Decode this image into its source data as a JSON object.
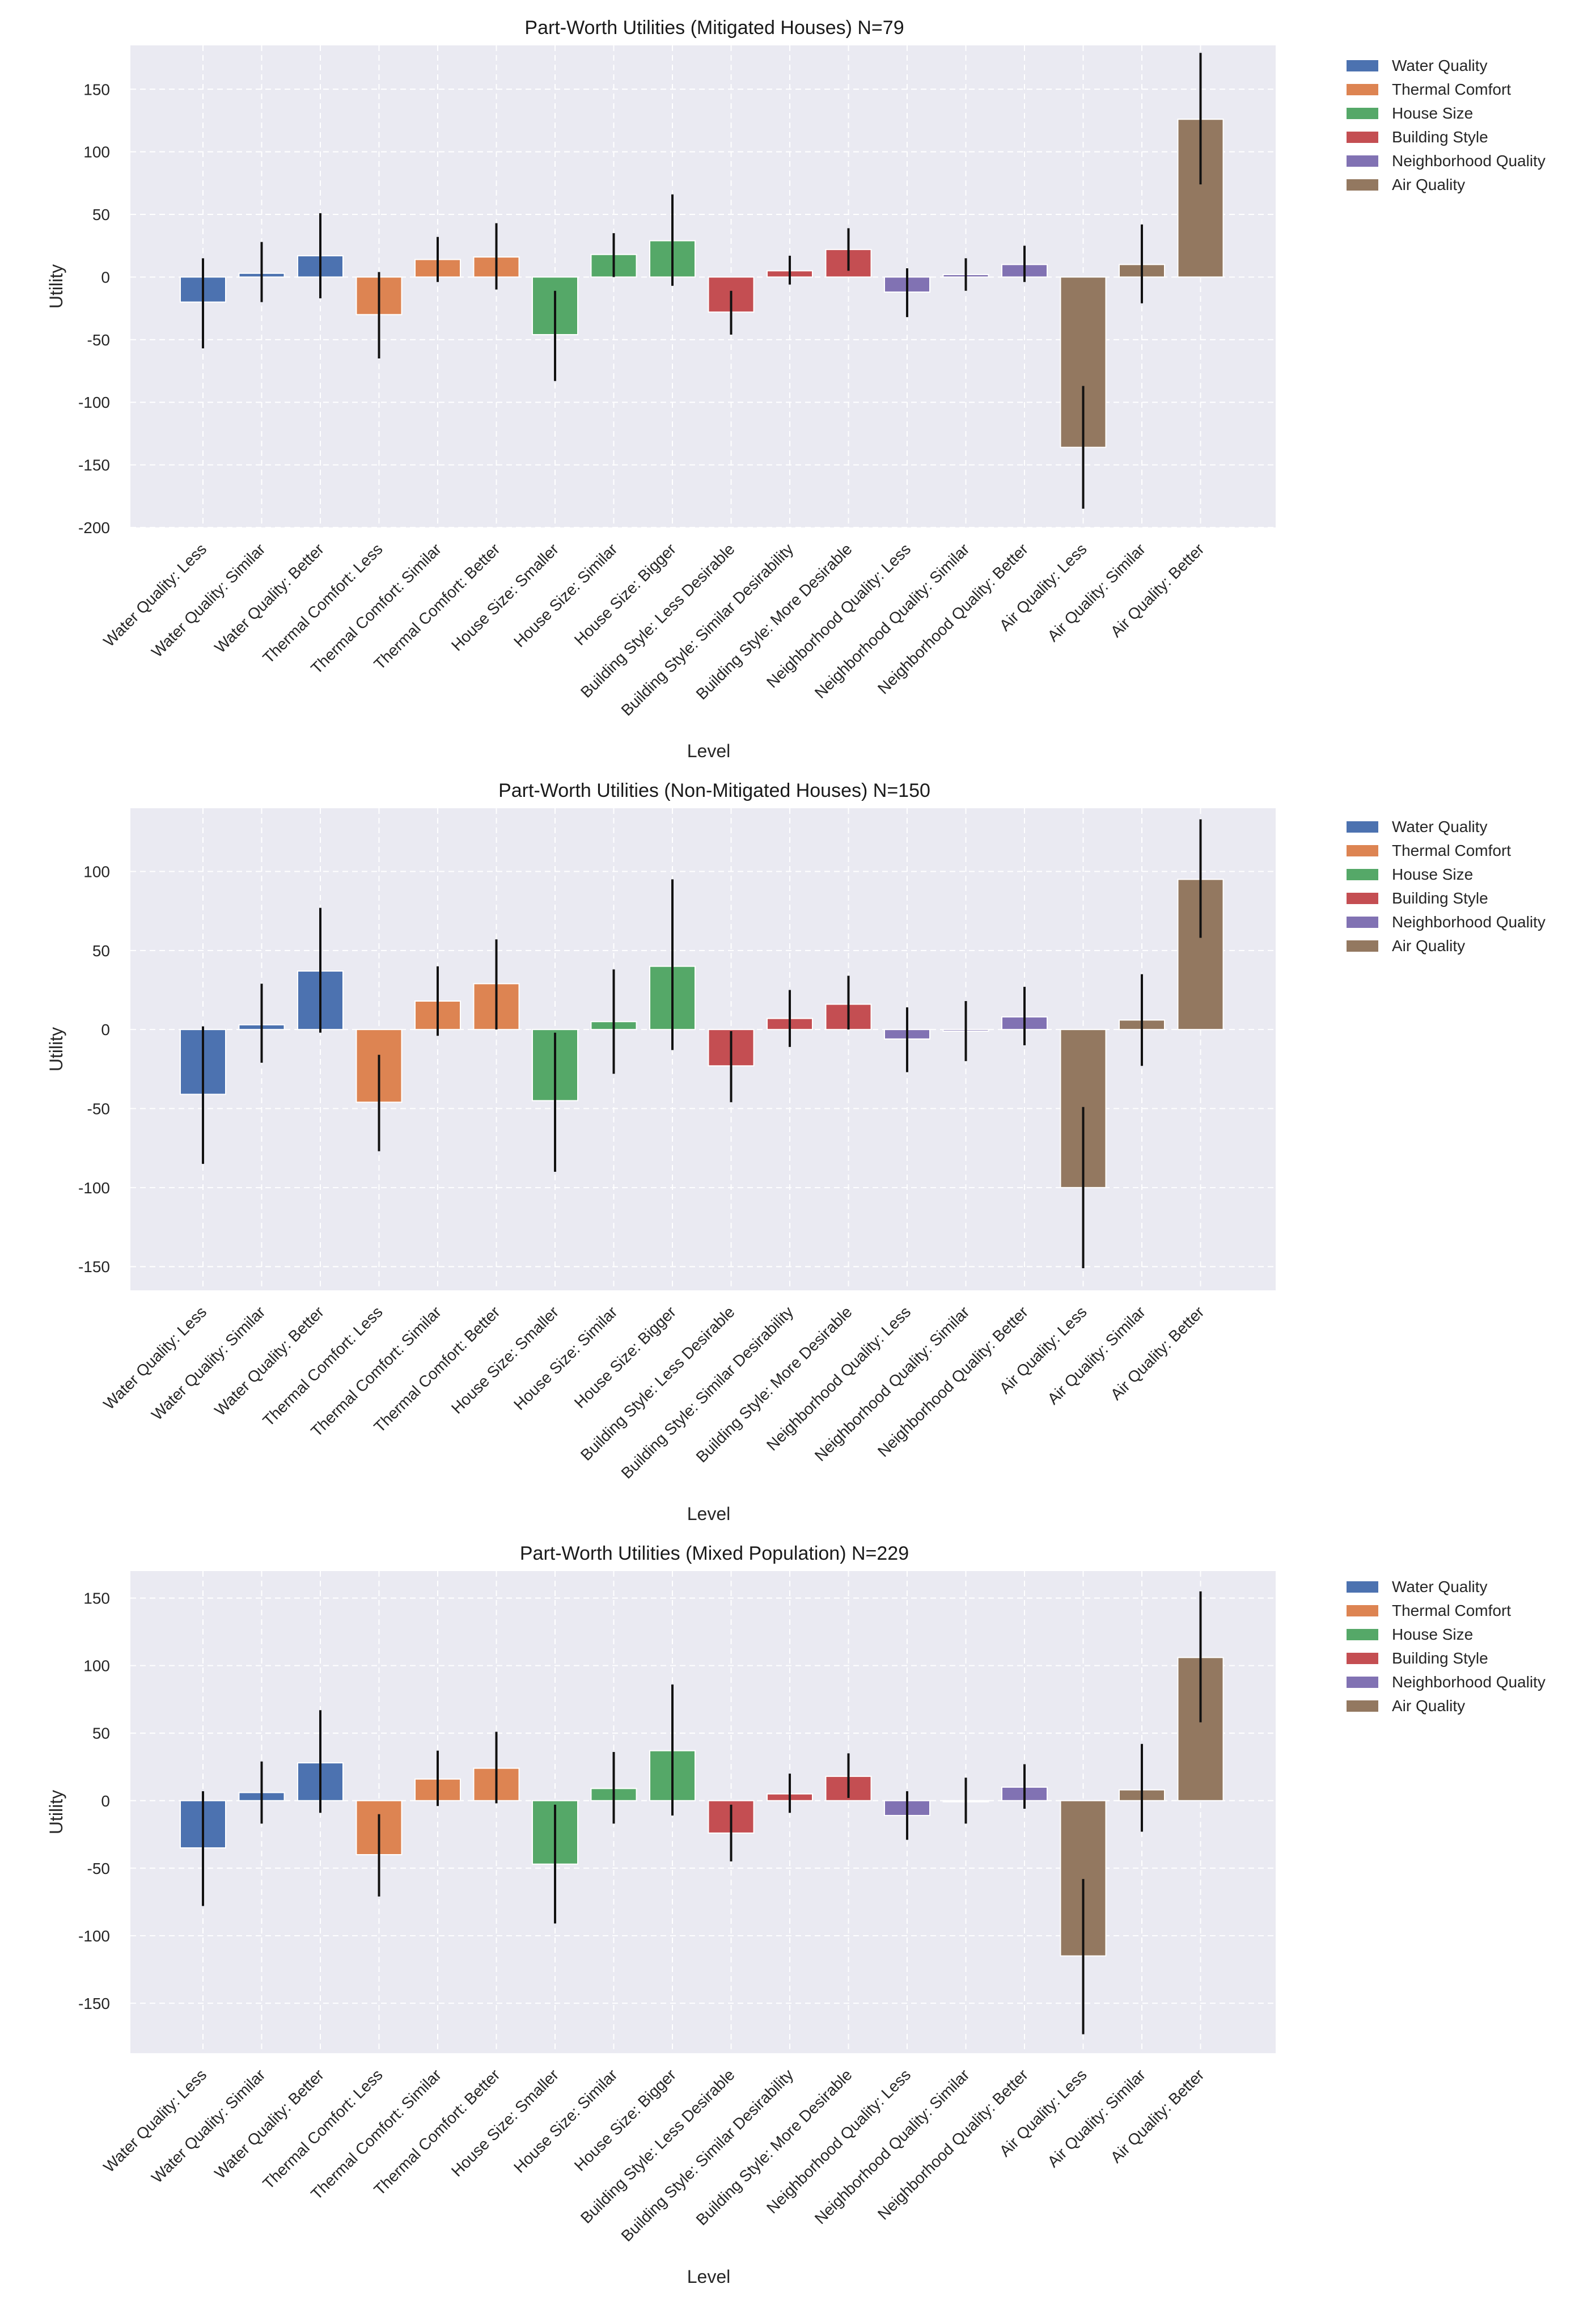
{
  "colors": {
    "Water Quality": "#4c72b0",
    "Thermal Comfort": "#dd8452",
    "House Size": "#55a868",
    "Building Style": "#c44e52",
    "Neighborhood Quality": "#8172b3",
    "Air Quality": "#937860"
  },
  "chart_data": [
    {
      "type": "bar",
      "title": "Part-Worth Utilities (Mitigated Houses) N=79",
      "xlabel": "Level",
      "ylabel": "Utility",
      "ylim": [
        -200,
        185
      ],
      "yticks": [
        -200,
        -150,
        -100,
        -50,
        0,
        50,
        100,
        150
      ],
      "grid": true,
      "legend": {
        "placement": "outside-right",
        "entries": [
          "Water Quality",
          "Thermal Comfort",
          "House Size",
          "Building Style",
          "Neighborhood Quality",
          "Air Quality"
        ]
      },
      "categories": [
        "Water Quality: Less",
        "Water Quality: Similar",
        "Water Quality: Better",
        "Thermal Comfort: Less",
        "Thermal Comfort: Similar",
        "Thermal Comfort: Better",
        "House Size: Smaller",
        "House Size: Similar",
        "House Size: Bigger",
        "Building Style: Less Desirable",
        "Building Style: Similar Desirability",
        "Building Style: More Desirable",
        "Neighborhood Quality: Less",
        "Neighborhood Quality: Similar",
        "Neighborhood Quality: Better",
        "Air Quality: Less",
        "Air Quality: Similar",
        "Air Quality: Better"
      ],
      "groups": [
        "Water Quality",
        "Water Quality",
        "Water Quality",
        "Thermal Comfort",
        "Thermal Comfort",
        "Thermal Comfort",
        "House Size",
        "House Size",
        "House Size",
        "Building Style",
        "Building Style",
        "Building Style",
        "Neighborhood Quality",
        "Neighborhood Quality",
        "Neighborhood Quality",
        "Air Quality",
        "Air Quality",
        "Air Quality"
      ],
      "values": [
        -20,
        3,
        17,
        -30,
        14,
        16,
        -46,
        18,
        29,
        -28,
        5,
        22,
        -12,
        2,
        10,
        -136,
        10,
        126
      ],
      "error_low": [
        -57,
        -20,
        -17,
        -65,
        -4,
        -10,
        -83,
        0,
        -7,
        -46,
        -6,
        5,
        -32,
        -11,
        -4,
        -185,
        -21,
        74
      ],
      "error_high": [
        15,
        28,
        51,
        4,
        32,
        43,
        -11,
        35,
        66,
        -11,
        17,
        39,
        7,
        15,
        25,
        -87,
        42,
        179
      ]
    },
    {
      "type": "bar",
      "title": "Part-Worth Utilities (Non-Mitigated Houses) N=150",
      "xlabel": "Level",
      "ylabel": "Utility",
      "ylim": [
        -165,
        140
      ],
      "yticks": [
        -150,
        -100,
        -50,
        0,
        50,
        100
      ],
      "grid": true,
      "legend": {
        "placement": "outside-right",
        "entries": [
          "Water Quality",
          "Thermal Comfort",
          "House Size",
          "Building Style",
          "Neighborhood Quality",
          "Air Quality"
        ]
      },
      "categories": [
        "Water Quality: Less",
        "Water Quality: Similar",
        "Water Quality: Better",
        "Thermal Comfort: Less",
        "Thermal Comfort: Similar",
        "Thermal Comfort: Better",
        "House Size: Smaller",
        "House Size: Similar",
        "House Size: Bigger",
        "Building Style: Less Desirable",
        "Building Style: Similar Desirability",
        "Building Style: More Desirable",
        "Neighborhood Quality: Less",
        "Neighborhood Quality: Similar",
        "Neighborhood Quality: Better",
        "Air Quality: Less",
        "Air Quality: Similar",
        "Air Quality: Better"
      ],
      "groups": [
        "Water Quality",
        "Water Quality",
        "Water Quality",
        "Thermal Comfort",
        "Thermal Comfort",
        "Thermal Comfort",
        "House Size",
        "House Size",
        "House Size",
        "Building Style",
        "Building Style",
        "Building Style",
        "Neighborhood Quality",
        "Neighborhood Quality",
        "Neighborhood Quality",
        "Air Quality",
        "Air Quality",
        "Air Quality"
      ],
      "values": [
        -41,
        3,
        37,
        -46,
        18,
        29,
        -45,
        5,
        40,
        -23,
        7,
        16,
        -6,
        -1,
        8,
        -100,
        6,
        95
      ],
      "error_low": [
        -85,
        -21,
        -2,
        -77,
        -4,
        0,
        -90,
        -28,
        -13,
        -46,
        -11,
        0,
        -27,
        -20,
        -10,
        -151,
        -23,
        58
      ],
      "error_high": [
        2,
        29,
        77,
        -16,
        40,
        57,
        -2,
        38,
        95,
        -1,
        25,
        34,
        14,
        18,
        27,
        -49,
        35,
        133
      ]
    },
    {
      "type": "bar",
      "title": "Part-Worth Utilities (Mixed Population) N=229",
      "xlabel": "Level",
      "ylabel": "Utility",
      "ylim": [
        -187,
        170
      ],
      "yticks": [
        -150,
        -100,
        -50,
        0,
        50,
        100,
        150
      ],
      "grid": true,
      "legend": {
        "placement": "outside-right",
        "entries": [
          "Water Quality",
          "Thermal Comfort",
          "House Size",
          "Building Style",
          "Neighborhood Quality",
          "Air Quality"
        ]
      },
      "categories": [
        "Water Quality: Less",
        "Water Quality: Similar",
        "Water Quality: Better",
        "Thermal Comfort: Less",
        "Thermal Comfort: Similar",
        "Thermal Comfort: Better",
        "House Size: Smaller",
        "House Size: Similar",
        "House Size: Bigger",
        "Building Style: Less Desirable",
        "Building Style: Similar Desirability",
        "Building Style: More Desirable",
        "Neighborhood Quality: Less",
        "Neighborhood Quality: Similar",
        "Neighborhood Quality: Better",
        "Air Quality: Less",
        "Air Quality: Similar",
        "Air Quality: Better"
      ],
      "groups": [
        "Water Quality",
        "Water Quality",
        "Water Quality",
        "Thermal Comfort",
        "Thermal Comfort",
        "Thermal Comfort",
        "House Size",
        "House Size",
        "House Size",
        "Building Style",
        "Building Style",
        "Building Style",
        "Neighborhood Quality",
        "Neighborhood Quality",
        "Neighborhood Quality",
        "Air Quality",
        "Air Quality",
        "Air Quality"
      ],
      "values": [
        -35,
        6,
        28,
        -40,
        16,
        24,
        -47,
        9,
        37,
        -24,
        5,
        18,
        -11,
        0,
        10,
        -115,
        8,
        106
      ],
      "error_low": [
        -78,
        -17,
        -9,
        -71,
        -4,
        -2,
        -91,
        -17,
        -11,
        -45,
        -9,
        2,
        -29,
        -17,
        -6,
        -173,
        -23,
        58
      ],
      "error_high": [
        7,
        29,
        67,
        -10,
        37,
        51,
        -3,
        36,
        86,
        -3,
        20,
        35,
        7,
        17,
        27,
        -58,
        42,
        155
      ]
    }
  ]
}
